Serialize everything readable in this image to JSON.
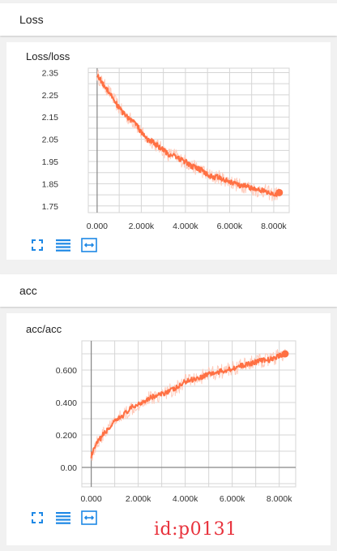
{
  "sections": [
    {
      "header": "Loss",
      "chart_title": "Loss/loss"
    },
    {
      "header": "acc",
      "chart_title": "acc/acc"
    }
  ],
  "toolbar_icons": [
    "fullscreen-icon",
    "data-table-icon",
    "fit-domain-icon"
  ],
  "colors": {
    "smoothed": "#ff7043",
    "raw": "#ffcbbb",
    "grid": "#d5d5d5",
    "axis": "#888888"
  },
  "watermark": "id:p0131",
  "chart_data": [
    {
      "type": "line",
      "title": "Loss/loss",
      "xlabel": "",
      "ylabel": "",
      "xlim": [
        -400,
        8700
      ],
      "ylim": [
        1.72,
        2.37
      ],
      "x_ticks": [
        "0.000",
        "2.000k",
        "4.000k",
        "6.000k",
        "8.000k"
      ],
      "x_tick_values": [
        0,
        2000,
        4000,
        6000,
        8000
      ],
      "y_ticks": [
        "2.35",
        "2.25",
        "2.15",
        "2.05",
        "1.95",
        "1.85",
        "1.75"
      ],
      "y_tick_values": [
        2.35,
        2.25,
        2.15,
        2.05,
        1.95,
        1.85,
        1.75
      ],
      "grid": true,
      "series": [
        {
          "x": [
            0,
            250,
            500,
            750,
            1000,
            1250,
            1500,
            1750,
            2000,
            2250,
            2500,
            2750,
            3000,
            3250,
            3500,
            3750,
            4000,
            4250,
            4500,
            4750,
            5000,
            5250,
            5500,
            5750,
            6000,
            6250,
            6500,
            6750,
            7000,
            7250,
            7500,
            7750,
            8000,
            8250
          ],
          "y": [
            2.34,
            2.3,
            2.27,
            2.23,
            2.19,
            2.16,
            2.14,
            2.12,
            2.08,
            2.05,
            2.04,
            2.02,
            2.0,
            1.98,
            1.98,
            1.96,
            1.95,
            1.93,
            1.92,
            1.91,
            1.89,
            1.88,
            1.88,
            1.87,
            1.86,
            1.85,
            1.84,
            1.84,
            1.83,
            1.82,
            1.82,
            1.81,
            1.8,
            1.81
          ]
        }
      ]
    },
    {
      "type": "line",
      "title": "acc/acc",
      "xlabel": "",
      "ylabel": "",
      "xlim": [
        -400,
        8700
      ],
      "ylim": [
        -0.12,
        0.78
      ],
      "x_ticks": [
        "0.000",
        "2.000k",
        "4.000k",
        "6.000k",
        "8.000k"
      ],
      "x_tick_values": [
        0,
        2000,
        4000,
        6000,
        8000
      ],
      "y_ticks": [
        "0.600",
        "0.400",
        "0.200",
        "0.00"
      ],
      "y_tick_values": [
        0.6,
        0.4,
        0.2,
        0.0
      ],
      "grid": true,
      "series": [
        {
          "x": [
            0,
            250,
            500,
            750,
            1000,
            1250,
            1500,
            1750,
            2000,
            2250,
            2500,
            2750,
            3000,
            3250,
            3500,
            3750,
            4000,
            4250,
            4500,
            4750,
            5000,
            5250,
            5500,
            5750,
            6000,
            6250,
            6500,
            6750,
            7000,
            7250,
            7500,
            7750,
            8000,
            8250
          ],
          "y": [
            0.07,
            0.15,
            0.2,
            0.24,
            0.28,
            0.31,
            0.34,
            0.37,
            0.39,
            0.41,
            0.43,
            0.44,
            0.45,
            0.47,
            0.48,
            0.5,
            0.53,
            0.54,
            0.55,
            0.56,
            0.58,
            0.58,
            0.59,
            0.6,
            0.61,
            0.62,
            0.63,
            0.64,
            0.65,
            0.66,
            0.66,
            0.67,
            0.69,
            0.7
          ]
        }
      ]
    }
  ]
}
